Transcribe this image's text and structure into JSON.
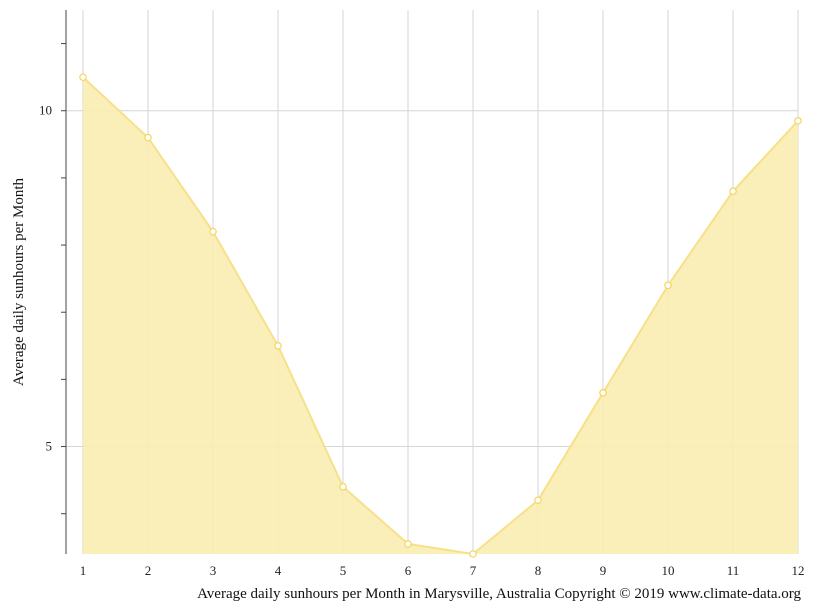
{
  "chart_data": {
    "type": "area",
    "x": [
      1,
      2,
      3,
      4,
      5,
      6,
      7,
      8,
      9,
      10,
      11,
      12
    ],
    "series": [
      {
        "values": [
          10.5,
          9.6,
          8.2,
          6.5,
          4.4,
          3.55,
          3.4,
          4.2,
          5.8,
          7.4,
          8.8,
          9.85
        ]
      }
    ],
    "xlabel": "",
    "ylabel": "Average daily sunhours per Month",
    "x_ticks": [
      "1",
      "2",
      "3",
      "4",
      "5",
      "6",
      "7",
      "8",
      "9",
      "10",
      "11",
      "12"
    ],
    "y_ticks": [
      "5",
      "10"
    ],
    "ylim": [
      3.4,
      11.5
    ],
    "grid": true,
    "colors": {
      "fill": "#faedb0",
      "line": "#f7e08a",
      "marker_stroke": "#f5d55e",
      "grid": "#d6d6d6",
      "axis": "#444444"
    }
  },
  "caption": "Average daily sunhours per Month in Marysville, Australia Copyright © 2019 www.climate-data.org"
}
